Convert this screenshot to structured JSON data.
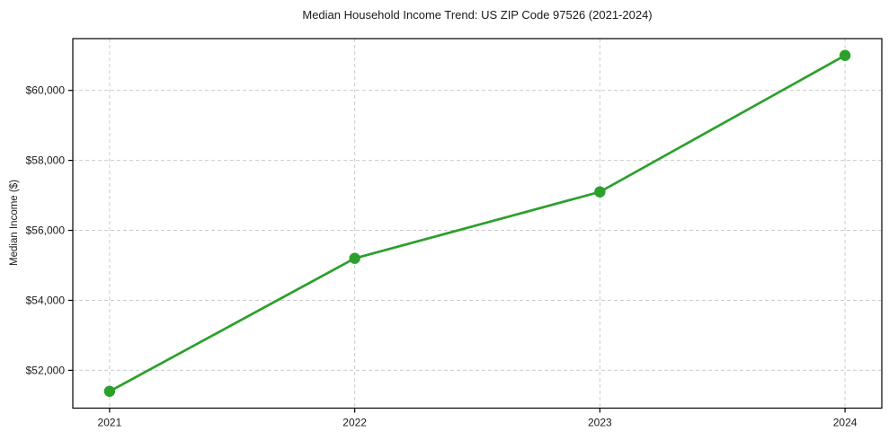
{
  "chart_data": {
    "type": "line",
    "title": "Median Household Income Trend: US ZIP Code 97526 (2021-2024)",
    "xlabel": "",
    "ylabel": "Median Income ($)",
    "x": [
      2021,
      2022,
      2023,
      2024
    ],
    "x_tick_labels": [
      "2021",
      "2022",
      "2023",
      "2024"
    ],
    "series": [
      {
        "name": "Median Household Income",
        "values": [
          51400,
          55200,
          57100,
          61000
        ]
      }
    ],
    "y_ticks": [
      52000,
      54000,
      56000,
      58000,
      60000
    ],
    "y_tick_labels": [
      "$52,000",
      "$54,000",
      "$56,000",
      "$58,000",
      "$60,000"
    ],
    "xlim": [
      2020.85,
      2024.15
    ],
    "ylim": [
      50920,
      61480
    ],
    "grid": true,
    "grid_style": "dashed",
    "legend": false,
    "marker": "circle",
    "colors": {
      "line": "#2ca02c",
      "marker": "#2ca02c",
      "grid": "#cccccc",
      "axis": "#000000",
      "text": "#1a1a1a",
      "background": "#ffffff"
    }
  }
}
